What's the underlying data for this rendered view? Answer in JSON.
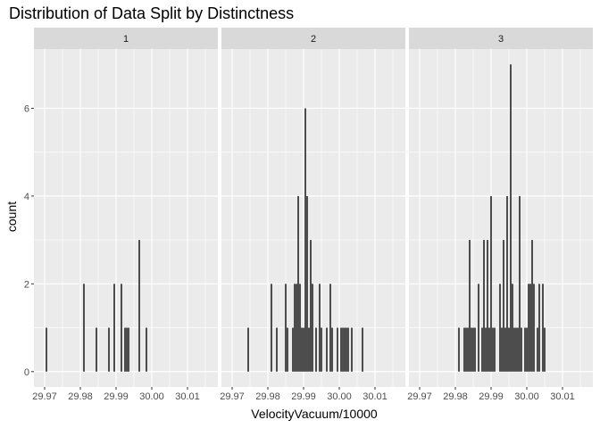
{
  "chart_data": {
    "type": "bar",
    "title": "Distribution of Data Split by Distinctness",
    "xlabel": "VelocityVacuum/10000",
    "ylabel": "count",
    "xlim": [
      29.967,
      30.0185
    ],
    "ylim": [
      -0.35,
      7.35
    ],
    "x_ticks": [
      29.97,
      29.98,
      29.99,
      30.0,
      30.01
    ],
    "x_tick_labels": [
      "29.97",
      "29.98",
      "29.99",
      "30.00",
      "30.01"
    ],
    "y_ticks": [
      0,
      2,
      4,
      6
    ],
    "y_tick_labels": [
      "0",
      "2",
      "4",
      "6"
    ],
    "bin_width": 0.0005,
    "grid": true,
    "panel_background": "#EBEBEB",
    "strip_background": "#D9D9D9",
    "bar_color": "#4D4D4D",
    "panels": [
      {
        "label": "1",
        "bars": [
          {
            "x": 29.9705,
            "count": 1
          },
          {
            "x": 29.981,
            "count": 2
          },
          {
            "x": 29.9845,
            "count": 1
          },
          {
            "x": 29.988,
            "count": 1
          },
          {
            "x": 29.9895,
            "count": 2
          },
          {
            "x": 29.9915,
            "count": 2
          },
          {
            "x": 29.9925,
            "count": 1
          },
          {
            "x": 29.993,
            "count": 1
          },
          {
            "x": 29.9935,
            "count": 1
          },
          {
            "x": 29.9965,
            "count": 3
          },
          {
            "x": 29.9985,
            "count": 1
          }
        ]
      },
      {
        "label": "2",
        "bars": [
          {
            "x": 29.9745,
            "count": 1
          },
          {
            "x": 29.981,
            "count": 2
          },
          {
            "x": 29.9825,
            "count": 1
          },
          {
            "x": 29.985,
            "count": 2
          },
          {
            "x": 29.9855,
            "count": 1
          },
          {
            "x": 29.987,
            "count": 1
          },
          {
            "x": 29.9875,
            "count": 2
          },
          {
            "x": 29.988,
            "count": 2
          },
          {
            "x": 29.9885,
            "count": 4
          },
          {
            "x": 29.989,
            "count": 2
          },
          {
            "x": 29.9895,
            "count": 1
          },
          {
            "x": 29.99,
            "count": 1
          },
          {
            "x": 29.9905,
            "count": 6
          },
          {
            "x": 29.991,
            "count": 4
          },
          {
            "x": 29.9915,
            "count": 1
          },
          {
            "x": 29.992,
            "count": 3
          },
          {
            "x": 29.9925,
            "count": 2
          },
          {
            "x": 29.9935,
            "count": 1
          },
          {
            "x": 29.9945,
            "count": 2
          },
          {
            "x": 29.995,
            "count": 1
          },
          {
            "x": 29.9965,
            "count": 1
          },
          {
            "x": 29.9975,
            "count": 2
          },
          {
            "x": 29.998,
            "count": 1
          },
          {
            "x": 29.9995,
            "count": 1
          },
          {
            "x": 30.0005,
            "count": 1
          },
          {
            "x": 30.001,
            "count": 1
          },
          {
            "x": 30.0015,
            "count": 1
          },
          {
            "x": 30.002,
            "count": 1
          },
          {
            "x": 30.0025,
            "count": 1
          },
          {
            "x": 30.0035,
            "count": 1
          },
          {
            "x": 30.0065,
            "count": 1
          }
        ]
      },
      {
        "label": "3",
        "bars": [
          {
            "x": 29.981,
            "count": 1
          },
          {
            "x": 29.9825,
            "count": 1
          },
          {
            "x": 29.983,
            "count": 1
          },
          {
            "x": 29.9835,
            "count": 1
          },
          {
            "x": 29.984,
            "count": 3
          },
          {
            "x": 29.9845,
            "count": 1
          },
          {
            "x": 29.985,
            "count": 1
          },
          {
            "x": 29.9855,
            "count": 1
          },
          {
            "x": 29.9865,
            "count": 2
          },
          {
            "x": 29.9875,
            "count": 1
          },
          {
            "x": 29.988,
            "count": 3
          },
          {
            "x": 29.9885,
            "count": 1
          },
          {
            "x": 29.989,
            "count": 3
          },
          {
            "x": 29.9895,
            "count": 1
          },
          {
            "x": 29.99,
            "count": 4
          },
          {
            "x": 29.9905,
            "count": 1
          },
          {
            "x": 29.991,
            "count": 1
          },
          {
            "x": 29.9925,
            "count": 2
          },
          {
            "x": 29.993,
            "count": 1
          },
          {
            "x": 29.9935,
            "count": 3
          },
          {
            "x": 29.994,
            "count": 1
          },
          {
            "x": 29.9945,
            "count": 4
          },
          {
            "x": 29.995,
            "count": 1
          },
          {
            "x": 29.9955,
            "count": 7
          },
          {
            "x": 29.996,
            "count": 2
          },
          {
            "x": 29.9965,
            "count": 1
          },
          {
            "x": 29.997,
            "count": 1
          },
          {
            "x": 29.9975,
            "count": 1
          },
          {
            "x": 29.998,
            "count": 4
          },
          {
            "x": 29.9985,
            "count": 1
          },
          {
            "x": 29.9995,
            "count": 1
          },
          {
            "x": 30.0,
            "count": 1
          },
          {
            "x": 30.0005,
            "count": 2
          },
          {
            "x": 30.001,
            "count": 2
          },
          {
            "x": 30.0015,
            "count": 3
          },
          {
            "x": 30.002,
            "count": 2
          },
          {
            "x": 30.003,
            "count": 1
          },
          {
            "x": 30.0035,
            "count": 2
          },
          {
            "x": 30.0045,
            "count": 2
          },
          {
            "x": 30.005,
            "count": 1
          }
        ]
      }
    ]
  }
}
